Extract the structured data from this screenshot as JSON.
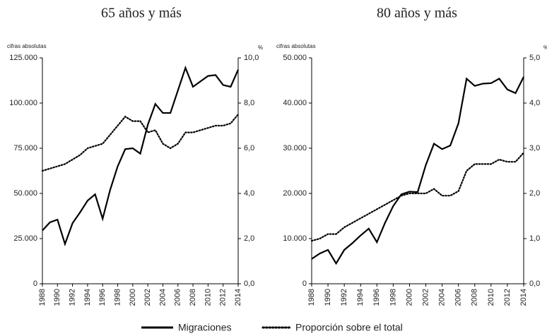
{
  "chart_data": [
    {
      "type": "line",
      "title": "65 años y más",
      "y_label": "cifras absolutas",
      "y2_label": "%",
      "x": [
        1988,
        1989,
        1990,
        1991,
        1992,
        1993,
        1994,
        1995,
        1996,
        1997,
        1998,
        1999,
        2000,
        2001,
        2002,
        2003,
        2004,
        2005,
        2006,
        2007,
        2008,
        2009,
        2010,
        2011,
        2012,
        2013,
        2014
      ],
      "xlim": [
        1988,
        2014
      ],
      "xticks": [
        1988,
        1990,
        1992,
        1994,
        1996,
        1998,
        2000,
        2002,
        2004,
        2006,
        2008,
        2010,
        2012,
        2014
      ],
      "ylim": [
        0,
        125000
      ],
      "yticks": [
        0,
        {
          "value": 25000,
          "label": "25.000"
        },
        {
          "value": 50000,
          "label": "50.000"
        },
        {
          "value": 75000,
          "label": "75.000"
        },
        {
          "value": 100000,
          "label": "100.000"
        },
        {
          "value": 125000,
          "label": "125.000"
        }
      ],
      "y2lim": [
        0,
        10
      ],
      "y2ticks": [
        {
          "value": 0,
          "label": "0,0"
        },
        {
          "value": 2,
          "label": "2,0"
        },
        {
          "value": 4,
          "label": "4,0"
        },
        {
          "value": 6,
          "label": "6,0"
        },
        {
          "value": 8,
          "label": "8,0"
        },
        {
          "value": 10,
          "label": "10,0"
        }
      ],
      "series": [
        {
          "name": "Migraciones",
          "color": "#000000",
          "style": "solid",
          "values": [
            29500,
            34000,
            35500,
            22000,
            33500,
            39500,
            46000,
            49500,
            36000,
            52000,
            65000,
            74500,
            75000,
            72000,
            88000,
            99500,
            94500,
            94500,
            107000,
            119500,
            109000,
            112000,
            115000,
            115500,
            110000,
            109000,
            118500
          ]
        },
        {
          "name": "Proporción sobre el total",
          "color": "#000000",
          "style": "dotted",
          "axis": "y2",
          "values": [
            5.0,
            5.1,
            5.2,
            5.3,
            5.5,
            5.7,
            6.0,
            6.1,
            6.2,
            6.6,
            7.0,
            7.4,
            7.2,
            7.2,
            6.7,
            6.8,
            6.2,
            6.0,
            6.2,
            6.7,
            6.7,
            6.8,
            6.9,
            7.0,
            7.0,
            7.1,
            7.5
          ]
        }
      ]
    },
    {
      "type": "line",
      "title": "80 años y más",
      "y_label": "cifras absolutas",
      "y2_label": "%",
      "x": [
        1988,
        1989,
        1990,
        1991,
        1992,
        1993,
        1994,
        1995,
        1996,
        1997,
        1998,
        1999,
        2000,
        2001,
        2002,
        2003,
        2004,
        2005,
        2006,
        2007,
        2008,
        2009,
        2010,
        2011,
        2012,
        2013,
        2014
      ],
      "xlim": [
        1988,
        2014
      ],
      "xticks": [
        1988,
        1990,
        1992,
        1994,
        1996,
        1998,
        2000,
        2002,
        2004,
        2006,
        2008,
        2010,
        2012,
        2014
      ],
      "ylim": [
        0,
        50000
      ],
      "yticks": [
        0,
        {
          "value": 10000,
          "label": "10.000"
        },
        {
          "value": 20000,
          "label": "20.000"
        },
        {
          "value": 30000,
          "label": "30.000"
        },
        {
          "value": 40000,
          "label": "40.000"
        },
        {
          "value": 50000,
          "label": "50.000"
        }
      ],
      "y2lim": [
        0,
        5
      ],
      "y2ticks": [
        {
          "value": 0,
          "label": "0,0"
        },
        {
          "value": 1,
          "label": "1,0"
        },
        {
          "value": 2,
          "label": "2,0"
        },
        {
          "value": 3,
          "label": "3,0"
        },
        {
          "value": 4,
          "label": "4,0"
        },
        {
          "value": 5,
          "label": "5,0"
        }
      ],
      "series": [
        {
          "color": "#000000",
          "style": "solid",
          "values": [
            5500,
            6700,
            7500,
            4500,
            7500,
            9000,
            10700,
            12200,
            9200,
            13500,
            17200,
            19800,
            20400,
            20300,
            26300,
            31000,
            29800,
            30600,
            35500,
            45400,
            43800,
            44300,
            44400,
            45400,
            43000,
            42200,
            45800
          ]
        },
        {
          "color": "#000000",
          "style": "dotted",
          "axis": "y2",
          "values": [
            0.95,
            1.0,
            1.1,
            1.1,
            1.25,
            1.35,
            1.45,
            1.55,
            1.65,
            1.75,
            1.85,
            1.95,
            2.0,
            2.0,
            2.0,
            2.1,
            1.95,
            1.95,
            2.05,
            2.5,
            2.65,
            2.65,
            2.65,
            2.75,
            2.7,
            2.7,
            2.9
          ]
        }
      ]
    }
  ]
}
